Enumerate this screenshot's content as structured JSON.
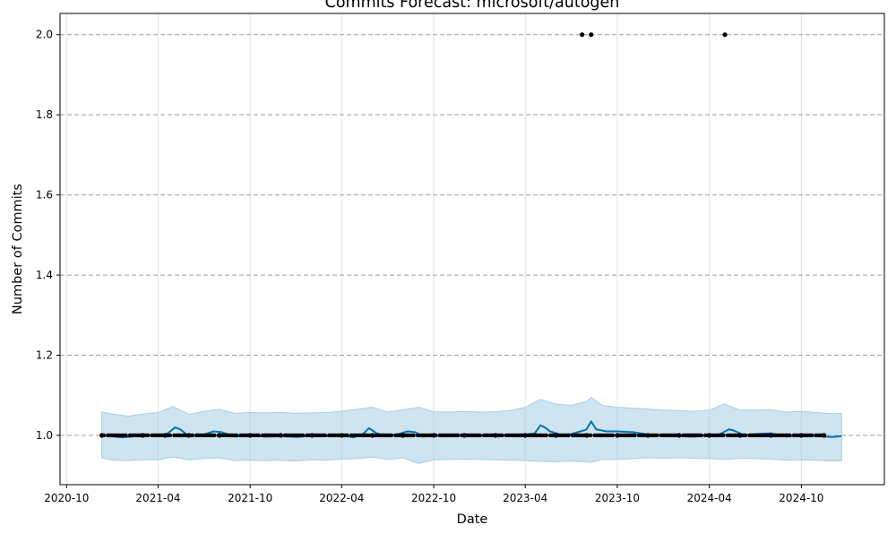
{
  "chart_data": {
    "type": "line",
    "title": "Commits Forecast: microsoft/autogen",
    "xlabel": "Date",
    "ylabel": "Number of Commits",
    "xlim": [
      "2020-09-18",
      "2025-03-15"
    ],
    "ylim": [
      0.877,
      2.053
    ],
    "x_ticks": [
      "2020-10",
      "2021-04",
      "2021-10",
      "2022-04",
      "2022-10",
      "2023-04",
      "2023-10",
      "2024-04",
      "2024-10"
    ],
    "y_ticks": [
      1.0,
      1.2,
      1.4,
      1.6,
      1.8,
      2.0
    ],
    "x_grid": true,
    "y_grid": true,
    "y_grid_style": "dashed",
    "legend": "none",
    "colors": {
      "forecast_line": "#0072B2",
      "uncertainty_band": "#a6cee3",
      "observed_points": "#000000",
      "x_grid": "#e3e3e3",
      "y_grid": "#a0a0a0"
    },
    "series": [
      {
        "role": "forecast",
        "kind": "line",
        "points": [
          [
            "2020-12-10",
            1.0
          ],
          [
            "2020-12-25",
            0.998
          ],
          [
            "2021-01-20",
            0.995
          ],
          [
            "2021-02-15",
            0.998
          ],
          [
            "2021-03-10",
            1.0
          ],
          [
            "2021-04-01",
            0.998
          ],
          [
            "2021-04-20",
            1.005
          ],
          [
            "2021-05-05",
            1.02
          ],
          [
            "2021-05-15",
            1.015
          ],
          [
            "2021-06-01",
            0.998
          ],
          [
            "2021-07-01",
            1.002
          ],
          [
            "2021-07-20",
            1.01
          ],
          [
            "2021-08-05",
            1.008
          ],
          [
            "2021-09-01",
            0.997
          ],
          [
            "2021-10-01",
            1.0
          ],
          [
            "2021-11-01",
            0.997
          ],
          [
            "2021-12-01",
            0.998
          ],
          [
            "2022-01-01",
            0.996
          ],
          [
            "2022-02-01",
            0.999
          ],
          [
            "2022-03-01",
            0.998
          ],
          [
            "2022-04-01",
            1.0
          ],
          [
            "2022-04-25",
            0.995
          ],
          [
            "2022-05-15",
            1.005
          ],
          [
            "2022-05-25",
            1.018
          ],
          [
            "2022-06-10",
            1.005
          ],
          [
            "2022-07-01",
            0.997
          ],
          [
            "2022-07-20",
            1.002
          ],
          [
            "2022-08-10",
            1.01
          ],
          [
            "2022-08-25",
            1.008
          ],
          [
            "2022-09-10",
            0.997
          ],
          [
            "2022-10-01",
            1.0
          ],
          [
            "2022-11-01",
            0.998
          ],
          [
            "2022-12-01",
            1.0
          ],
          [
            "2023-01-01",
            0.998
          ],
          [
            "2023-02-01",
            1.0
          ],
          [
            "2023-03-01",
            1.0
          ],
          [
            "2023-04-01",
            1.002
          ],
          [
            "2023-04-20",
            1.005
          ],
          [
            "2023-05-01",
            1.025
          ],
          [
            "2023-05-10",
            1.02
          ],
          [
            "2023-05-20",
            1.01
          ],
          [
            "2023-06-10",
            1.002
          ],
          [
            "2023-07-01",
            1.003
          ],
          [
            "2023-07-20",
            1.01
          ],
          [
            "2023-08-01",
            1.015
          ],
          [
            "2023-08-10",
            1.035
          ],
          [
            "2023-08-20",
            1.015
          ],
          [
            "2023-09-10",
            1.01
          ],
          [
            "2023-10-01",
            1.01
          ],
          [
            "2023-11-01",
            1.008
          ],
          [
            "2023-12-01",
            1.002
          ],
          [
            "2024-01-01",
            1.0
          ],
          [
            "2024-02-01",
            0.998
          ],
          [
            "2024-03-01",
            0.997
          ],
          [
            "2024-04-01",
            1.0
          ],
          [
            "2024-04-20",
            1.002
          ],
          [
            "2024-05-10",
            1.015
          ],
          [
            "2024-05-20",
            1.012
          ],
          [
            "2024-06-10",
            1.0
          ],
          [
            "2024-07-01",
            1.003
          ],
          [
            "2024-08-01",
            1.005
          ],
          [
            "2024-09-01",
            0.997
          ],
          [
            "2024-10-01",
            1.0
          ],
          [
            "2024-11-01",
            0.998
          ],
          [
            "2024-12-01",
            0.996
          ],
          [
            "2024-12-20",
            0.998
          ]
        ]
      },
      {
        "role": "uncertainty_interval",
        "kind": "band",
        "points": [
          [
            "2020-12-10",
            0.944,
            1.058
          ],
          [
            "2021-01-01",
            0.938,
            1.053
          ],
          [
            "2021-02-01",
            0.937,
            1.048
          ],
          [
            "2021-03-01",
            0.939,
            1.053
          ],
          [
            "2021-04-01",
            0.939,
            1.057
          ],
          [
            "2021-05-01",
            0.946,
            1.072
          ],
          [
            "2021-06-01",
            0.939,
            1.052
          ],
          [
            "2021-07-01",
            0.942,
            1.06
          ],
          [
            "2021-08-01",
            0.944,
            1.065
          ],
          [
            "2021-09-01",
            0.937,
            1.055
          ],
          [
            "2021-10-01",
            0.938,
            1.057
          ],
          [
            "2021-11-01",
            0.937,
            1.056
          ],
          [
            "2021-12-01",
            0.938,
            1.057
          ],
          [
            "2022-01-01",
            0.936,
            1.055
          ],
          [
            "2022-02-01",
            0.939,
            1.056
          ],
          [
            "2022-03-01",
            0.938,
            1.057
          ],
          [
            "2022-04-01",
            0.941,
            1.06
          ],
          [
            "2022-05-01",
            0.942,
            1.065
          ],
          [
            "2022-06-01",
            0.946,
            1.07
          ],
          [
            "2022-07-01",
            0.94,
            1.058
          ],
          [
            "2022-08-01",
            0.944,
            1.064
          ],
          [
            "2022-09-01",
            0.93,
            1.07
          ],
          [
            "2022-10-01",
            0.939,
            1.059
          ],
          [
            "2022-11-01",
            0.94,
            1.058
          ],
          [
            "2022-12-01",
            0.941,
            1.06
          ],
          [
            "2023-01-01",
            0.94,
            1.058
          ],
          [
            "2023-02-01",
            0.939,
            1.059
          ],
          [
            "2023-03-01",
            0.938,
            1.062
          ],
          [
            "2023-04-01",
            0.937,
            1.07
          ],
          [
            "2023-05-01",
            0.935,
            1.09
          ],
          [
            "2023-06-01",
            0.934,
            1.078
          ],
          [
            "2023-07-01",
            0.936,
            1.075
          ],
          [
            "2023-08-01",
            0.934,
            1.085
          ],
          [
            "2023-08-10",
            0.933,
            1.095
          ],
          [
            "2023-09-01",
            0.94,
            1.075
          ],
          [
            "2023-10-01",
            0.94,
            1.07
          ],
          [
            "2023-11-01",
            0.942,
            1.068
          ],
          [
            "2023-12-01",
            0.944,
            1.066
          ],
          [
            "2024-01-01",
            0.943,
            1.063
          ],
          [
            "2024-02-01",
            0.944,
            1.062
          ],
          [
            "2024-03-01",
            0.943,
            1.06
          ],
          [
            "2024-04-01",
            0.942,
            1.063
          ],
          [
            "2024-05-01",
            0.94,
            1.078
          ],
          [
            "2024-06-01",
            0.943,
            1.063
          ],
          [
            "2024-07-01",
            0.942,
            1.063
          ],
          [
            "2024-08-01",
            0.941,
            1.064
          ],
          [
            "2024-09-01",
            0.938,
            1.058
          ],
          [
            "2024-10-01",
            0.939,
            1.06
          ],
          [
            "2024-11-01",
            0.938,
            1.057
          ],
          [
            "2024-12-01",
            0.936,
            1.054
          ],
          [
            "2024-12-20",
            0.937,
            1.055
          ]
        ]
      },
      {
        "role": "observed",
        "kind": "scatter",
        "value_1_dates_from": "2020-12-10",
        "value_1_dates_to": "2024-11-15",
        "value_1_density_note": "points at most days across the range",
        "points": [
          [
            "2020-12-10",
            1
          ],
          [
            "2021-03-01",
            1
          ],
          [
            "2021-04-15",
            1
          ],
          [
            "2021-06-01",
            1
          ],
          [
            "2021-08-01",
            1
          ],
          [
            "2021-10-01",
            1
          ],
          [
            "2021-12-01",
            1
          ],
          [
            "2022-02-01",
            1
          ],
          [
            "2022-04-01",
            1
          ],
          [
            "2022-06-01",
            1
          ],
          [
            "2022-08-01",
            1
          ],
          [
            "2022-10-01",
            1
          ],
          [
            "2022-12-01",
            1
          ],
          [
            "2023-02-01",
            1
          ],
          [
            "2023-04-01",
            1
          ],
          [
            "2023-06-01",
            1
          ],
          [
            "2023-08-01",
            1
          ],
          [
            "2023-10-01",
            1
          ],
          [
            "2023-12-01",
            1
          ],
          [
            "2024-02-01",
            1
          ],
          [
            "2024-04-01",
            1
          ],
          [
            "2024-06-01",
            1
          ],
          [
            "2024-08-01",
            1
          ],
          [
            "2024-10-01",
            1
          ],
          [
            "2024-11-15",
            1
          ],
          [
            "2023-07-23",
            2
          ],
          [
            "2023-08-10",
            2
          ],
          [
            "2024-05-02",
            2
          ]
        ]
      }
    ]
  }
}
